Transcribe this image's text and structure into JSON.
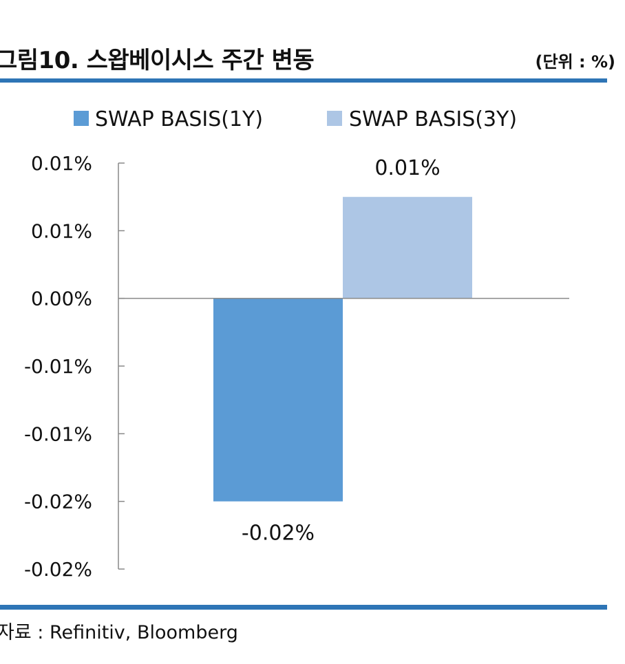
{
  "header": {
    "title": "그림10. 스왑베이시스 주간 변동",
    "unit": "(단위 : %)"
  },
  "footer": {
    "source": "자료 : Refinitiv, Bloomberg"
  },
  "colors": {
    "accent_rule": "#2e75b6",
    "series_1y": "#5b9bd5",
    "series_3y": "#adc6e5",
    "axis": "#888888"
  },
  "chart_data": {
    "type": "bar",
    "title": "",
    "xlabel": "",
    "ylabel": "",
    "categories": [
      ""
    ],
    "series": [
      {
        "name": "SWAP BASIS(1Y)",
        "values": [
          -0.015
        ],
        "label": "-0.02%"
      },
      {
        "name": "SWAP BASIS(3Y)",
        "values": [
          0.0075
        ],
        "label": "0.01%"
      }
    ],
    "y_ticks": [
      {
        "value": 0.01,
        "label": "0.01%"
      },
      {
        "value": 0.005,
        "label": "0.01%"
      },
      {
        "value": 0.0,
        "label": "0.00%"
      },
      {
        "value": -0.005,
        "label": "-0.01%"
      },
      {
        "value": -0.01,
        "label": "-0.01%"
      },
      {
        "value": -0.015,
        "label": "-0.02%"
      },
      {
        "value": -0.02,
        "label": "-0.02%"
      }
    ],
    "ylim": [
      -0.02,
      0.01
    ],
    "legend_position": "top",
    "grid": false
  }
}
